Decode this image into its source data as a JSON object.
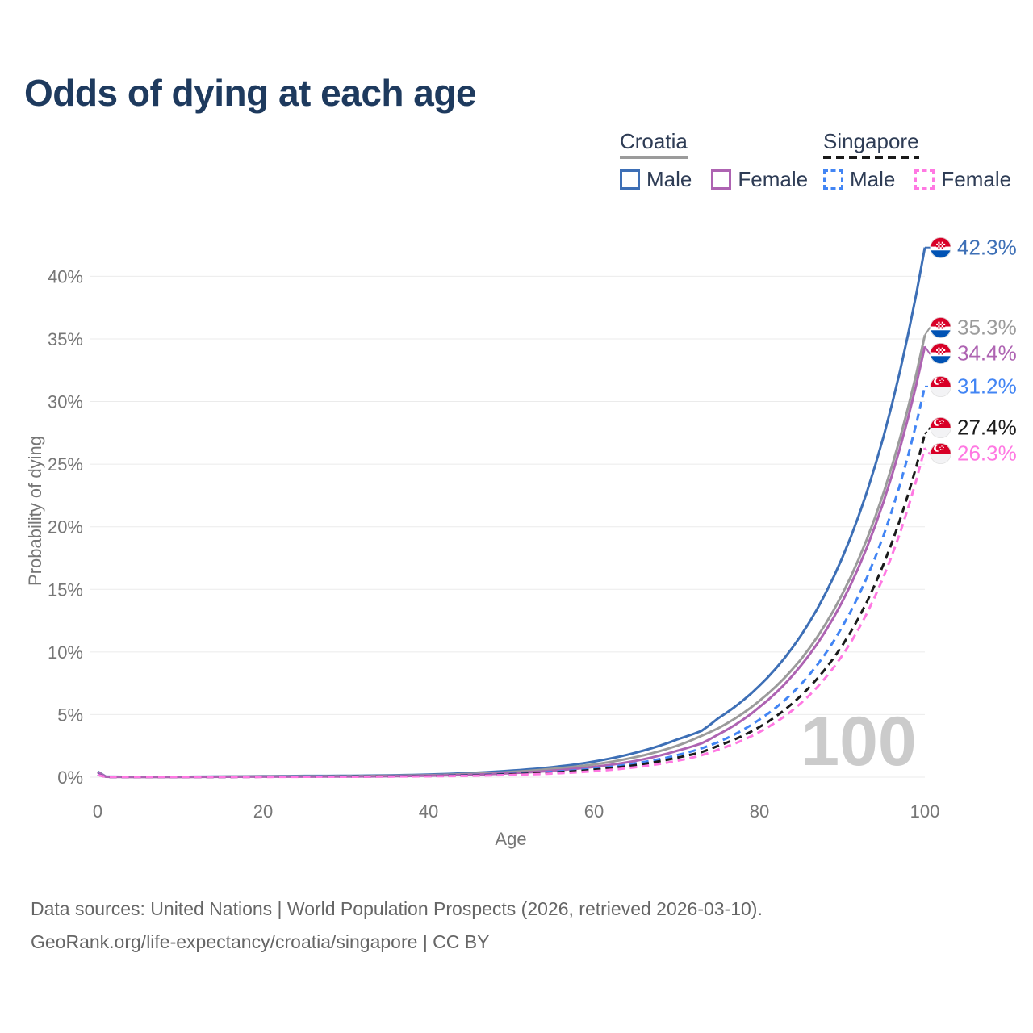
{
  "title": "Odds of dying at each age",
  "legend": {
    "groups": [
      {
        "name": "Croatia",
        "line_style": "solid",
        "line_color": "#9b9b9b",
        "items": [
          {
            "label": "Male",
            "color": "#3d6fb6",
            "style": "solid"
          },
          {
            "label": "Female",
            "color": "#ae63b2",
            "style": "solid"
          }
        ]
      },
      {
        "name": "Singapore",
        "line_style": "dashed",
        "line_color": "#1a1a1a",
        "items": [
          {
            "label": "Male",
            "color": "#4285f4",
            "style": "dashed"
          },
          {
            "label": "Female",
            "color": "#ff78e2",
            "style": "dashed"
          }
        ]
      }
    ]
  },
  "chart_data": {
    "type": "line",
    "title": "Odds of dying at each age",
    "xlabel": "Age",
    "ylabel": "Probability of dying",
    "xlim": [
      0,
      100
    ],
    "ylim": [
      0,
      43
    ],
    "grid": "horizontal",
    "watermark": "100",
    "xticks": [
      "0",
      "20",
      "40",
      "60",
      "80",
      "100"
    ],
    "yticks": [
      "0%",
      "5%",
      "10%",
      "15%",
      "20%",
      "25%",
      "30%",
      "35%",
      "40%"
    ],
    "x": [
      0,
      1,
      5,
      10,
      15,
      20,
      25,
      30,
      35,
      40,
      45,
      50,
      55,
      60,
      65,
      70,
      73,
      75,
      80,
      85,
      90,
      95,
      100
    ],
    "series": [
      {
        "id": "croatia-male",
        "country": "Croatia",
        "label": "Male",
        "color": "#3d6fb6",
        "dash": "solid",
        "flag": "croatia-flag",
        "end_label": "42.3%",
        "values": [
          0.45,
          0.04,
          0.03,
          0.03,
          0.05,
          0.08,
          0.1,
          0.11,
          0.14,
          0.21,
          0.33,
          0.52,
          0.8,
          1.25,
          1.95,
          3.0,
          3.7,
          4.7,
          7.3,
          11.3,
          17.5,
          27.2,
          42.3
        ]
      },
      {
        "id": "croatia",
        "country": "Croatia",
        "label": "Croatia",
        "color": "#9b9b9b",
        "dash": "solid",
        "flag": "croatia-flag",
        "end_label": "35.3%",
        "values": [
          0.42,
          0.03,
          0.02,
          0.02,
          0.04,
          0.06,
          0.07,
          0.08,
          0.11,
          0.16,
          0.26,
          0.42,
          0.66,
          1.02,
          1.6,
          2.5,
          3.3,
          3.9,
          6.1,
          9.4,
          14.6,
          22.7,
          35.3
        ]
      },
      {
        "id": "croatia-female",
        "country": "Croatia",
        "label": "Female",
        "color": "#ae63b2",
        "dash": "solid",
        "flag": "croatia-flag",
        "end_label": "34.4%",
        "values": [
          0.38,
          0.03,
          0.02,
          0.02,
          0.03,
          0.04,
          0.04,
          0.05,
          0.07,
          0.12,
          0.19,
          0.32,
          0.52,
          0.82,
          1.3,
          2.1,
          2.7,
          3.4,
          5.6,
          8.9,
          14.0,
          22.0,
          34.4
        ]
      },
      {
        "id": "singapore-male",
        "country": "Singapore",
        "label": "Male",
        "color": "#4285f4",
        "dash": "dashed",
        "flag": "singapore-flag",
        "end_label": "31.2%",
        "values": [
          0.22,
          0.02,
          0.01,
          0.01,
          0.02,
          0.03,
          0.04,
          0.05,
          0.07,
          0.1,
          0.16,
          0.26,
          0.42,
          0.67,
          1.1,
          1.75,
          2.3,
          2.8,
          4.6,
          7.4,
          12.0,
          19.3,
          31.2
        ]
      },
      {
        "id": "singapore",
        "country": "Singapore",
        "label": "Singapore",
        "color": "#1a1a1a",
        "dash": "dashed",
        "flag": "singapore-flag",
        "end_label": "27.4%",
        "values": [
          0.2,
          0.02,
          0.01,
          0.01,
          0.02,
          0.03,
          0.03,
          0.04,
          0.06,
          0.09,
          0.14,
          0.23,
          0.37,
          0.59,
          0.96,
          1.55,
          2.0,
          2.5,
          4.0,
          6.5,
          10.5,
          17.0,
          27.4
        ]
      },
      {
        "id": "singapore-female",
        "country": "Singapore",
        "label": "Female",
        "color": "#ff78e2",
        "dash": "dashed",
        "flag": "singapore-flag",
        "end_label": "26.3%",
        "values": [
          0.18,
          0.02,
          0.01,
          0.01,
          0.01,
          0.02,
          0.03,
          0.03,
          0.05,
          0.07,
          0.11,
          0.18,
          0.29,
          0.48,
          0.79,
          1.3,
          1.75,
          2.2,
          3.6,
          5.9,
          9.7,
          16.0,
          26.3
        ]
      }
    ]
  },
  "footer": {
    "line1": "Data sources: United Nations | World Population Prospects (2026, retrieved 2026-03-10).",
    "line2": "GeoRank.org/life-expectancy/croatia/singapore | CC BY"
  }
}
